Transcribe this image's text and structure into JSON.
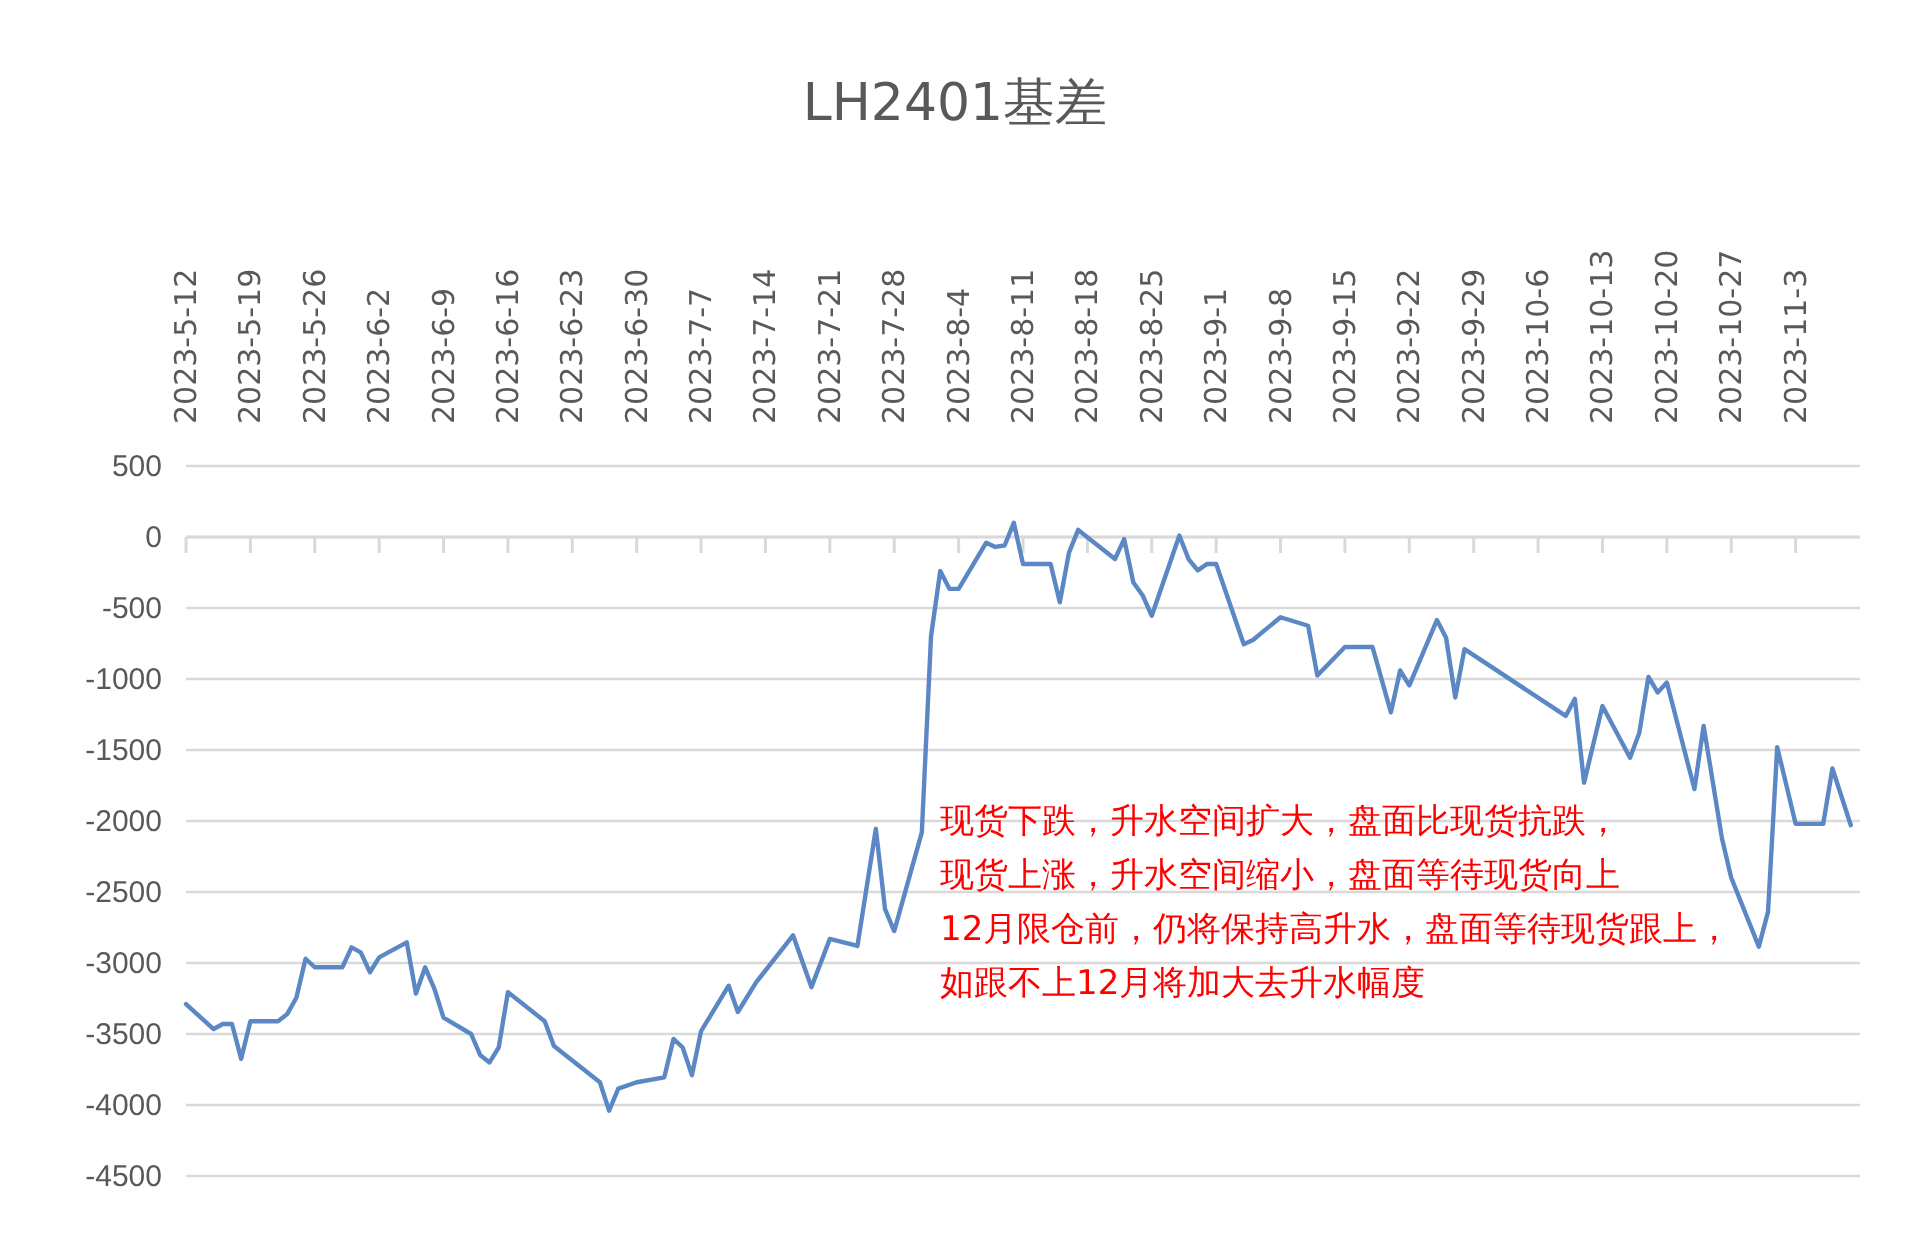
{
  "chart_data": {
    "type": "line",
    "title": "LH2401基差",
    "annotations": [
      "现货下跌，升水空间扩大，盘面比现货抗跌，",
      "现货上涨，升水空间缩小，盘面等待现货向上",
      "12月限仓前，仍将保持高升水，盘面等待现货跟上，",
      "如跟不上12月将加大去升水幅度"
    ],
    "ref_lines": [
      {
        "axis": "y",
        "value": 0,
        "color": "#d9d9d9"
      }
    ],
    "xlim": [
      "2023-05-12",
      "2023-11-10"
    ],
    "xticks": [
      {
        "value": "2023-05-12",
        "label": "2023-5-12"
      },
      {
        "value": "2023-05-19",
        "label": "2023-5-19"
      },
      {
        "value": "2023-05-26",
        "label": "2023-5-26"
      },
      {
        "value": "2023-06-02",
        "label": "2023-6-2"
      },
      {
        "value": "2023-06-09",
        "label": "2023-6-9"
      },
      {
        "value": "2023-06-16",
        "label": "2023-6-16"
      },
      {
        "value": "2023-06-23",
        "label": "2023-6-23"
      },
      {
        "value": "2023-06-30",
        "label": "2023-6-30"
      },
      {
        "value": "2023-07-07",
        "label": "2023-7-7"
      },
      {
        "value": "2023-07-14",
        "label": "2023-7-14"
      },
      {
        "value": "2023-07-21",
        "label": "2023-7-21"
      },
      {
        "value": "2023-07-28",
        "label": "2023-7-28"
      },
      {
        "value": "2023-08-04",
        "label": "2023-8-4"
      },
      {
        "value": "2023-08-11",
        "label": "2023-8-11"
      },
      {
        "value": "2023-08-18",
        "label": "2023-8-18"
      },
      {
        "value": "2023-08-25",
        "label": "2023-8-25"
      },
      {
        "value": "2023-09-01",
        "label": "2023-9-1"
      },
      {
        "value": "2023-09-08",
        "label": "2023-9-8"
      },
      {
        "value": "2023-09-15",
        "label": "2023-9-15"
      },
      {
        "value": "2023-09-22",
        "label": "2023-9-22"
      },
      {
        "value": "2023-09-29",
        "label": "2023-9-29"
      },
      {
        "value": "2023-10-06",
        "label": "2023-10-6"
      },
      {
        "value": "2023-10-13",
        "label": "2023-10-13"
      },
      {
        "value": "2023-10-20",
        "label": "2023-10-20"
      },
      {
        "value": "2023-10-27",
        "label": "2023-10-27"
      },
      {
        "value": "2023-11-03",
        "label": "2023-11-3"
      }
    ],
    "ylim": [
      -4500,
      500
    ],
    "yticks": [
      -4500,
      -4000,
      -3500,
      -3000,
      -2500,
      -2000,
      -1500,
      -1000,
      -500,
      0,
      500
    ],
    "grid": "y",
    "x": [
      "2023-05-12",
      "2023-05-15",
      "2023-05-16",
      "2023-05-17",
      "2023-05-18",
      "2023-05-19",
      "2023-05-22",
      "2023-05-23",
      "2023-05-24",
      "2023-05-25",
      "2023-05-26",
      "2023-05-29",
      "2023-05-30",
      "2023-05-31",
      "2023-06-01",
      "2023-06-02",
      "2023-06-05",
      "2023-06-06",
      "2023-06-07",
      "2023-06-08",
      "2023-06-09",
      "2023-06-12",
      "2023-06-13",
      "2023-06-14",
      "2023-06-15",
      "2023-06-16",
      "2023-06-20",
      "2023-06-21",
      "2023-06-26",
      "2023-06-27",
      "2023-06-28",
      "2023-06-30",
      "2023-07-03",
      "2023-07-04",
      "2023-07-05",
      "2023-07-06",
      "2023-07-07",
      "2023-07-10",
      "2023-07-11",
      "2023-07-13",
      "2023-07-17",
      "2023-07-19",
      "2023-07-21",
      "2023-07-24",
      "2023-07-26",
      "2023-07-27",
      "2023-07-28",
      "2023-07-31",
      "2023-08-01",
      "2023-08-02",
      "2023-08-03",
      "2023-08-04",
      "2023-08-07",
      "2023-08-08",
      "2023-08-09",
      "2023-08-10",
      "2023-08-11",
      "2023-08-14",
      "2023-08-15",
      "2023-08-16",
      "2023-08-17",
      "2023-08-21",
      "2023-08-22",
      "2023-08-23",
      "2023-08-24",
      "2023-08-25",
      "2023-08-28",
      "2023-08-29",
      "2023-08-30",
      "2023-08-31",
      "2023-09-01",
      "2023-09-04",
      "2023-09-05",
      "2023-09-08",
      "2023-09-11",
      "2023-09-12",
      "2023-09-15",
      "2023-09-18",
      "2023-09-20",
      "2023-09-21",
      "2023-09-22",
      "2023-09-25",
      "2023-09-26",
      "2023-09-27",
      "2023-09-28",
      "2023-10-09",
      "2023-10-10",
      "2023-10-11",
      "2023-10-13",
      "2023-10-16",
      "2023-10-17",
      "2023-10-18",
      "2023-10-19",
      "2023-10-20",
      "2023-10-23",
      "2023-10-24",
      "2023-10-26",
      "2023-10-27",
      "2023-10-30",
      "2023-10-31",
      "2023-11-01",
      "2023-11-03",
      "2023-11-06",
      "2023-11-07",
      "2023-11-09"
    ],
    "series": [
      {
        "color": "#5b87c5",
        "values": [
          -3290,
          -3465,
          -3430,
          -3430,
          -3675,
          -3410,
          -3410,
          -3360,
          -3245,
          -2970,
          -3030,
          -3030,
          -2890,
          -2925,
          -3065,
          -2960,
          -2855,
          -3215,
          -3030,
          -3180,
          -3385,
          -3500,
          -3650,
          -3700,
          -3595,
          -3205,
          -3410,
          -3585,
          -3840,
          -4040,
          -3885,
          -3840,
          -3805,
          -3535,
          -3595,
          -3790,
          -3480,
          -3160,
          -3345,
          -3135,
          -2805,
          -3170,
          -2830,
          -2880,
          -2055,
          -2620,
          -2775,
          -2080,
          -700,
          -240,
          -365,
          -365,
          -40,
          -70,
          -60,
          100,
          -190,
          -190,
          -460,
          -110,
          50,
          -155,
          -15,
          -320,
          -410,
          -555,
          10,
          -155,
          -235,
          -190,
          -190,
          -755,
          -725,
          -565,
          -625,
          -975,
          -775,
          -775,
          -1235,
          -940,
          -1045,
          -585,
          -710,
          -1130,
          -790,
          -1260,
          -1140,
          -1730,
          -1190,
          -1555,
          -1380,
          -985,
          -1095,
          -1025,
          -1775,
          -1330,
          -2125,
          -2400,
          -2885,
          -2640,
          -1480,
          -2020,
          -2020,
          -1630,
          -2030
        ]
      }
    ]
  }
}
